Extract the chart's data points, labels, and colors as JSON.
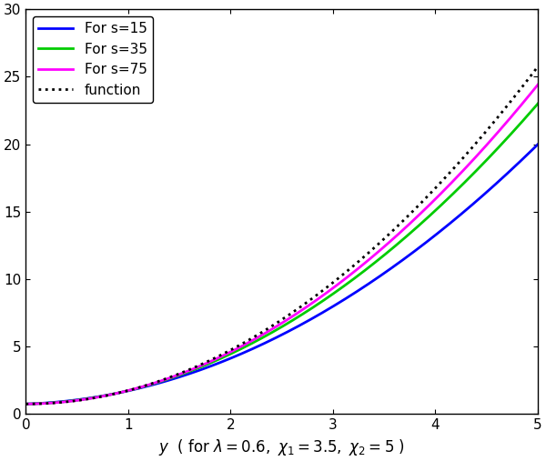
{
  "xlim": [
    0,
    5
  ],
  "ylim": [
    0,
    30
  ],
  "xticks": [
    0,
    1,
    2,
    3,
    4,
    5
  ],
  "yticks": [
    0,
    5,
    10,
    15,
    20,
    25,
    30
  ],
  "lambda": 0.6,
  "chi1": 3.5,
  "chi2": 5.0,
  "s_values": [
    15,
    35,
    75
  ],
  "s_colors": [
    "#0000ff",
    "#00cc00",
    "#ff00ff"
  ],
  "s_linewidth": 2.0,
  "func_color": "#000000",
  "func_linewidth": 2.0,
  "func_linestyle": "dotted",
  "legend_labels": [
    "For s=15",
    "For s=35",
    "For s=75",
    "function"
  ],
  "legend_fontsize": 11,
  "tick_labelsize": 11,
  "xlabel_fontsize": 12,
  "background_color": "#ffffff",
  "n_points": 400
}
